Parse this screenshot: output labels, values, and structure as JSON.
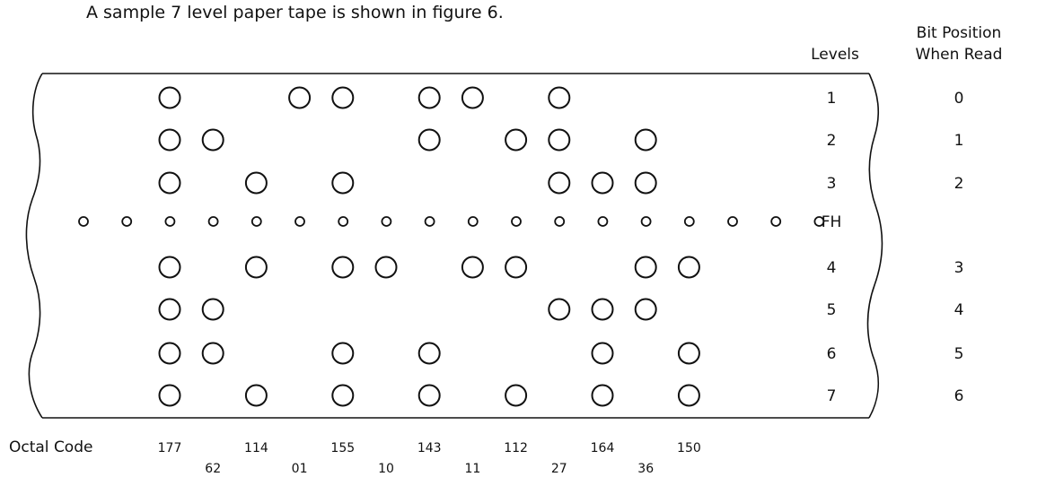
{
  "caption": "A sample 7 level paper tape is shown in figure 6.",
  "headers": {
    "levels": "Levels",
    "bit_position_line1": "Bit Position",
    "bit_position_line2": "When Read"
  },
  "octal_code_label": "Octal Code",
  "tape": {
    "rows": [
      {
        "level": "1",
        "bit": "0"
      },
      {
        "level": "2",
        "bit": "1"
      },
      {
        "level": "3",
        "bit": "2"
      },
      {
        "level": "FH",
        "bit": ""
      },
      {
        "level": "4",
        "bit": "3"
      },
      {
        "level": "5",
        "bit": "4"
      },
      {
        "level": "6",
        "bit": "5"
      },
      {
        "level": "7",
        "bit": "6"
      }
    ],
    "frames": [
      {
        "code": "177",
        "punched_levels": [
          "1",
          "2",
          "3",
          "4",
          "5",
          "6",
          "7"
        ]
      },
      {
        "code": "62",
        "punched_levels": [
          "2",
          "5",
          "6"
        ]
      },
      {
        "code": "114",
        "punched_levels": [
          "3",
          "4",
          "7"
        ]
      },
      {
        "code": "01",
        "punched_levels": [
          "1"
        ]
      },
      {
        "code": "155",
        "punched_levels": [
          "1",
          "3",
          "4",
          "6",
          "7"
        ]
      },
      {
        "code": "10",
        "punched_levels": [
          "4"
        ]
      },
      {
        "code": "143",
        "punched_levels": [
          "1",
          "2",
          "6",
          "7"
        ]
      },
      {
        "code": "11",
        "punched_levels": [
          "1",
          "4"
        ]
      },
      {
        "code": "112",
        "punched_levels": [
          "2",
          "4",
          "7"
        ]
      },
      {
        "code": "27",
        "punched_levels": [
          "1",
          "2",
          "3",
          "5"
        ]
      },
      {
        "code": "164",
        "punched_levels": [
          "3",
          "5",
          "6",
          "7"
        ]
      },
      {
        "code": "36",
        "punched_levels": [
          "2",
          "3",
          "4",
          "5"
        ]
      },
      {
        "code": "150",
        "punched_levels": [
          "4",
          "6",
          "7"
        ]
      }
    ],
    "feed_hole_count": 18
  }
}
